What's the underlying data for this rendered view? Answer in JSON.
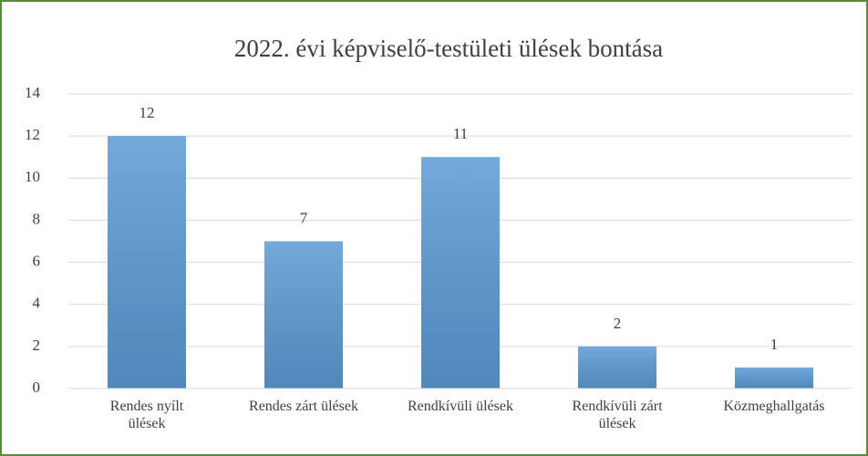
{
  "chart_data": {
    "type": "bar",
    "title": "2022. évi képviselő-testületi ülések bontása",
    "categories": [
      "Rendes nyílt ülések",
      "Rendes zárt ülések",
      "Rendkívüli ülések",
      "Rendkívüli zárt ülések",
      "Közmeghallgatás"
    ],
    "values": [
      12,
      7,
      11,
      2,
      1
    ],
    "color": "#5b9bd5",
    "ylim": [
      0,
      14
    ],
    "yticks": [
      0,
      2,
      4,
      6,
      8,
      10,
      12,
      14
    ],
    "grid": true,
    "data_labels": true
  }
}
